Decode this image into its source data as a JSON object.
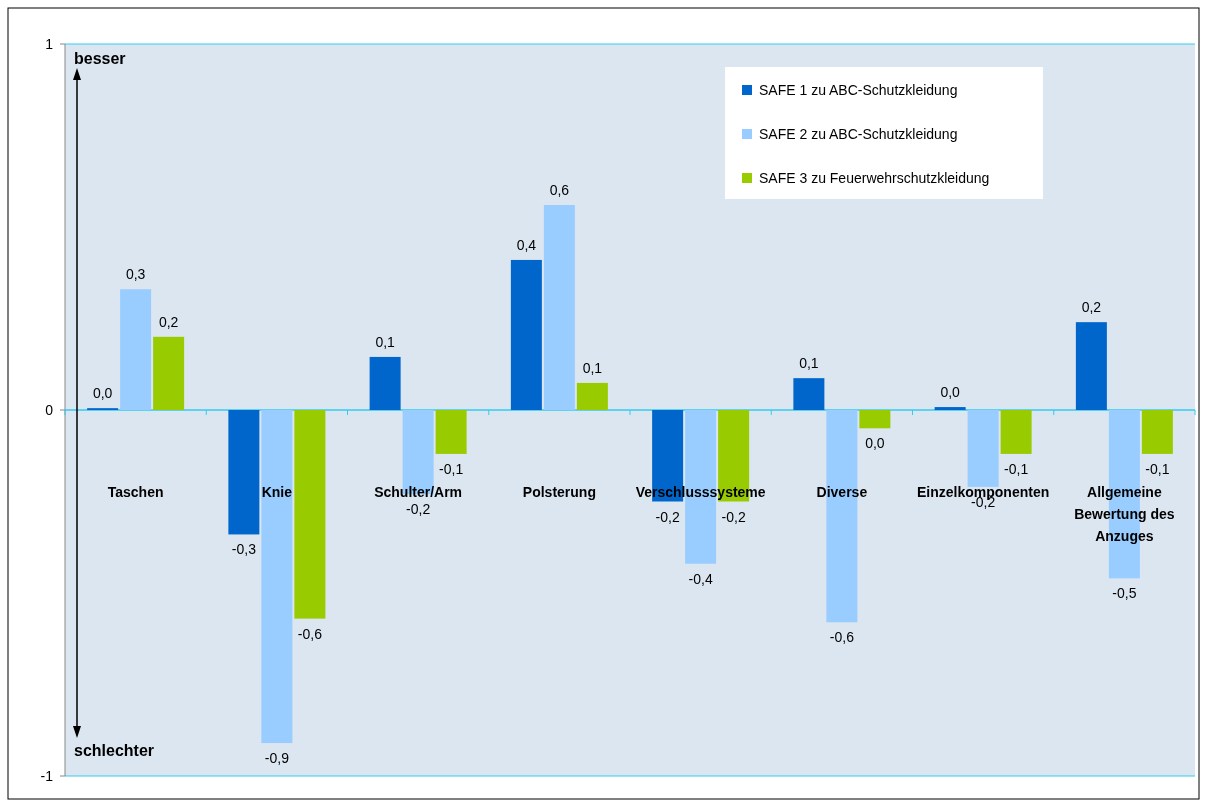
{
  "chart_data": {
    "type": "bar",
    "categories": [
      "Taschen",
      "Knie",
      "Schulter/Arm",
      "Polsterung",
      "Verschlusssysteme",
      "Diverse",
      "Einzelkomponenten",
      "Allgemeine Bewertung des Anzuges"
    ],
    "series": [
      {
        "name": "SAFE 1 zu ABC-Schutzkleidung",
        "color": "#0066cc",
        "values": [
          0.005,
          -0.34,
          0.145,
          0.41,
          -0.25,
          0.087,
          0.008,
          0.24
        ],
        "value_labels": [
          "0,0",
          "-0,3",
          "0,1",
          "0,4",
          "-0,2",
          "0,1",
          "0,0",
          "0,2"
        ]
      },
      {
        "name": "SAFE 2 zu ABC-Schutzkleidung",
        "color": "#99ccff",
        "values": [
          0.33,
          -0.91,
          -0.23,
          0.56,
          -0.42,
          -0.58,
          -0.21,
          -0.46
        ],
        "value_labels": [
          "0,3",
          "-0,9",
          "-0,2",
          "0,6",
          "-0,4",
          "-0,6",
          "-0,2",
          "-0,5"
        ]
      },
      {
        "name": "SAFE 3 zu Feuerwehrschutzkleidung",
        "color": "#99cc00",
        "values": [
          0.2,
          -0.57,
          -0.12,
          0.074,
          -0.25,
          -0.05,
          -0.12,
          -0.12
        ],
        "value_labels": [
          "0,2",
          "-0,6",
          "-0,1",
          "0,1",
          "-0,2",
          "0,0",
          "-0,1",
          "-0,1"
        ]
      }
    ],
    "ylim": [
      -1,
      1
    ],
    "yticks": [
      -1,
      0,
      1
    ],
    "grid": "y",
    "legend": "top right",
    "annotations": [
      "besser",
      "schlechter"
    ]
  }
}
